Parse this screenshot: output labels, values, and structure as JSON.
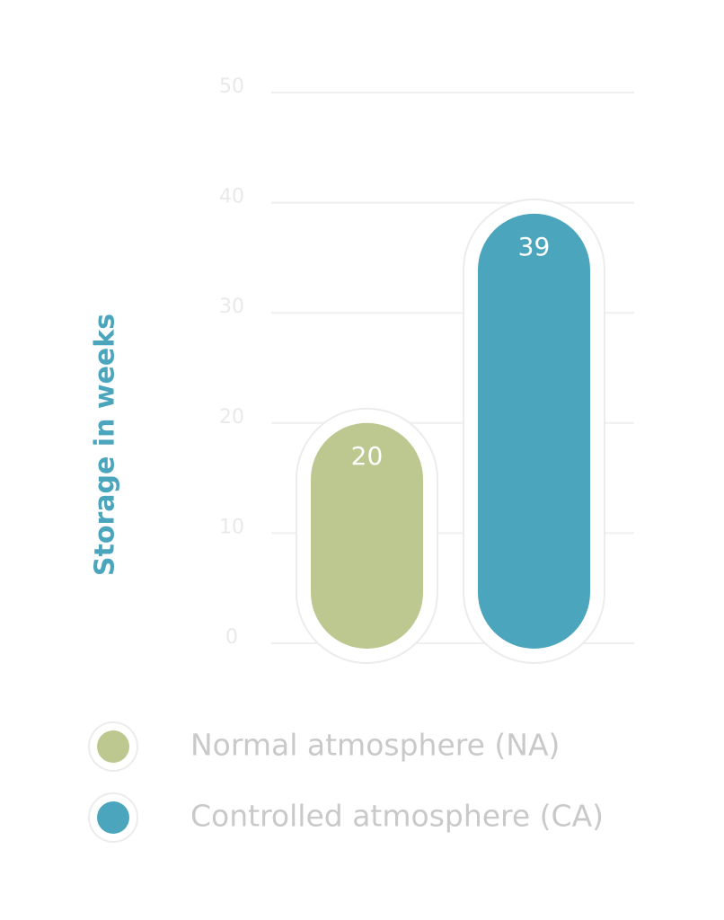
{
  "chart_data": {
    "type": "bar",
    "y_label": "Storage in weeks",
    "categories": [
      null
    ],
    "series": [
      {
        "name": "Normal atmosphere (NA)",
        "color": "#bcc88f",
        "values": [
          20
        ]
      },
      {
        "name": "Controlled atmosphere (CA)",
        "color": "#4ba5bc",
        "values": [
          39
        ]
      }
    ],
    "ylim": [
      0,
      50
    ],
    "yticks": [
      0,
      10,
      20,
      30,
      40,
      50
    ],
    "grid": true,
    "legend": "bottom"
  }
}
